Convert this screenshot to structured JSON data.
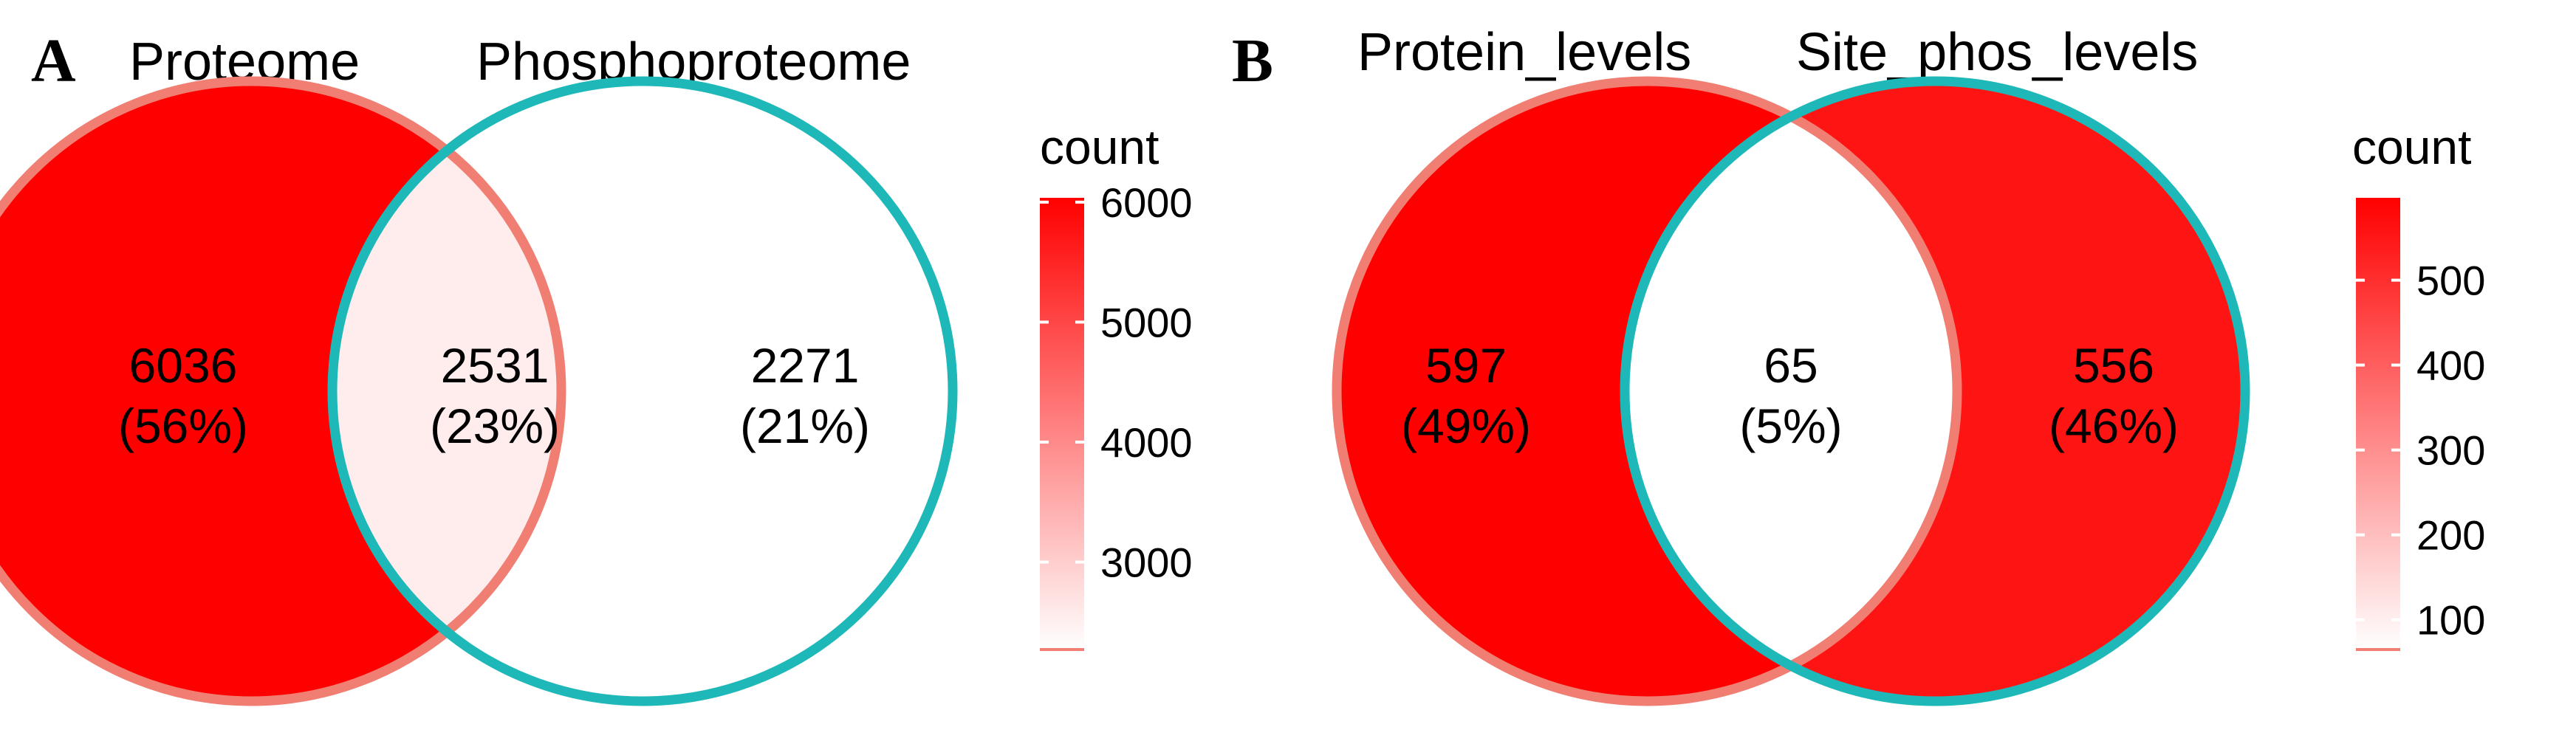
{
  "panels": [
    {
      "letter": "A",
      "set_labels": [
        "Proteome",
        "Phosphoproteome"
      ],
      "regions": [
        {
          "count": "6036",
          "pct": "(56%)",
          "value": 6036
        },
        {
          "count": "2531",
          "pct": "(23%)",
          "value": 2531
        },
        {
          "count": "2271",
          "pct": "(21%)",
          "value": 2271
        }
      ],
      "legend": {
        "title": "count",
        "ticks": [
          {
            "label": "6000",
            "value": 6000
          },
          {
            "label": "5000",
            "value": 5000
          },
          {
            "label": "4000",
            "value": 4000
          },
          {
            "label": "3000",
            "value": 3000
          }
        ],
        "range": [
          2271,
          6036
        ]
      }
    },
    {
      "letter": "B",
      "set_labels": [
        "Protein_levels",
        "Site_phos_levels"
      ],
      "regions": [
        {
          "count": "597",
          "pct": "(49%)",
          "value": 597
        },
        {
          "count": "65",
          "pct": "(5%)",
          "value": 65
        },
        {
          "count": "556",
          "pct": "(46%)",
          "value": 556
        }
      ],
      "legend": {
        "title": "count",
        "ticks": [
          {
            "label": "500",
            "value": 500
          },
          {
            "label": "400",
            "value": 400
          },
          {
            "label": "300",
            "value": 300
          },
          {
            "label": "200",
            "value": 200
          },
          {
            "label": "100",
            "value": 100
          }
        ],
        "range": [
          65,
          597
        ]
      }
    }
  ],
  "colors": {
    "gradient_high": "#ff0000",
    "gradient_low": "#ffffff",
    "left_circle_outline": "#f07e72",
    "right_circle_outline": "#1fb8b8"
  }
}
